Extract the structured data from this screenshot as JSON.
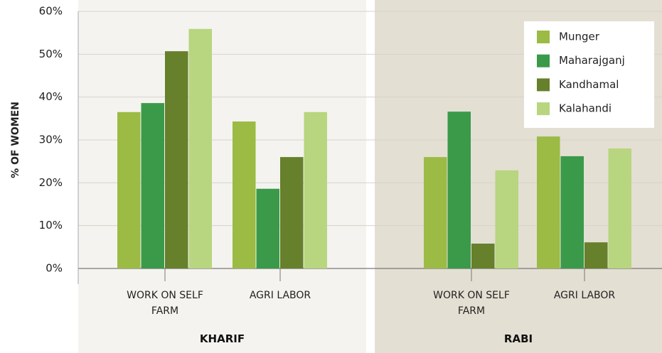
{
  "chart_data": {
    "type": "bar",
    "ylabel": "% OF WOMEN",
    "groups": [
      "KHARIF",
      "RABI"
    ],
    "categories": [
      "WORK ON SELF FARM",
      "AGRI LABOR",
      "WORK ON SELF FARM",
      "AGRI LABOR"
    ],
    "series": [
      {
        "name": "Munger",
        "color": "#9bbb45",
        "values": [
          36.5,
          34.3,
          26.0,
          30.8
        ]
      },
      {
        "name": "Maharajganj",
        "color": "#3a9a4a",
        "values": [
          38.6,
          18.6,
          36.6,
          26.2
        ]
      },
      {
        "name": "Kandhamal",
        "color": "#66802b",
        "values": [
          50.7,
          26.0,
          5.8,
          6.1
        ]
      },
      {
        "name": "Kalahandi",
        "color": "#b8d57f",
        "values": [
          55.9,
          36.5,
          22.9,
          28.0
        ]
      }
    ],
    "ylim": [
      0,
      60
    ],
    "yticks": [
      {
        "value": 0,
        "label": "0%"
      },
      {
        "value": 10,
        "label": "10%"
      },
      {
        "value": 20,
        "label": "20%"
      },
      {
        "value": 30,
        "label": "30%"
      },
      {
        "value": 40,
        "label": "40%"
      },
      {
        "value": 50,
        "label": "50%"
      },
      {
        "value": 60,
        "label": "60%"
      }
    ],
    "grid": true,
    "legend": "upper right"
  }
}
